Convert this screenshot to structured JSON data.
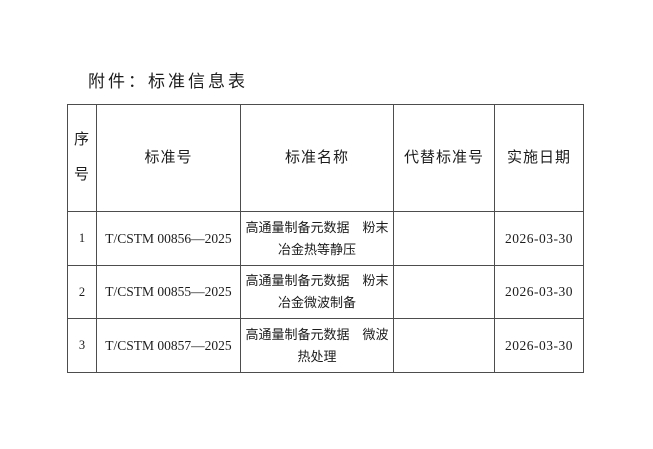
{
  "page": {
    "title": "附件：标准信息表"
  },
  "table": {
    "headers": {
      "seq": "序号",
      "std_no": "标准号",
      "std_name": "标准名称",
      "replaced_std_no": "代替标准号",
      "impl_date": "实施日期"
    },
    "rows": [
      {
        "seq": "1",
        "std_no": "T/CSTM 00856—2025",
        "std_name": "高通量制备元数据　粉末\n冶金热等静压",
        "replaced_std_no": "",
        "impl_date": "2026-03-30"
      },
      {
        "seq": "2",
        "std_no": "T/CSTM 00855—2025",
        "std_name": "高通量制备元数据　粉末\n冶金微波制备",
        "replaced_std_no": "",
        "impl_date": "2026-03-30"
      },
      {
        "seq": "3",
        "std_no": "T/CSTM 00857—2025",
        "std_name": "高通量制备元数据　微波\n热处理",
        "replaced_std_no": "",
        "impl_date": "2026-03-30"
      }
    ]
  },
  "colors": {
    "background": "#ffffff",
    "text": "#1c1c1c",
    "table_border": "#4d4d4d"
  }
}
